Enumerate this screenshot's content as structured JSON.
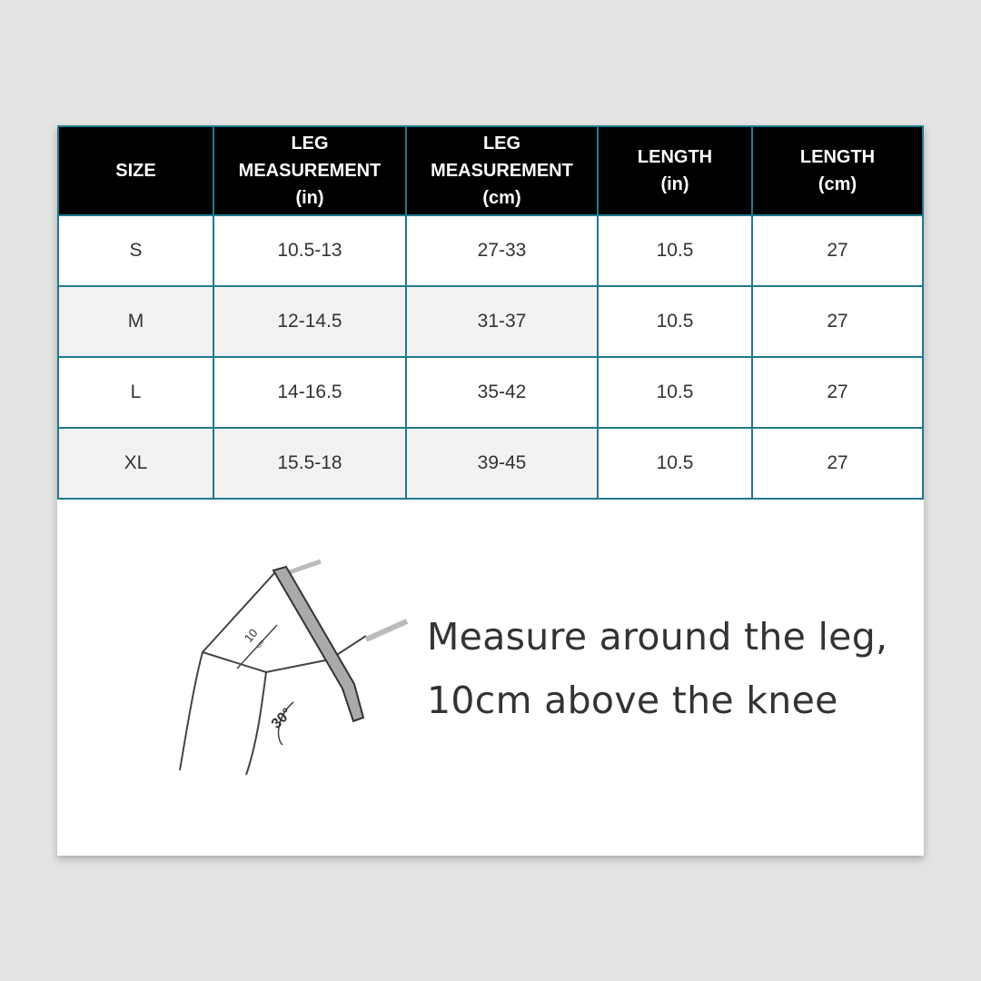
{
  "table": {
    "headers": [
      "SIZE",
      "LEG\nMEASUREMENT\n(in)",
      "LEG\nMEASUREMENT\n(cm)",
      "LENGTH\n(in)",
      "LENGTH\n(cm)"
    ],
    "header_lines": [
      [
        "SIZE"
      ],
      [
        "LEG",
        "MEASUREMENT",
        "(in)"
      ],
      [
        "LEG",
        "MEASUREMENT",
        "(cm)"
      ],
      [
        "LENGTH",
        "(in)"
      ],
      [
        "LENGTH",
        "(cm)"
      ]
    ],
    "rows": [
      [
        "S",
        "10.5-13",
        "27-33",
        "10.5",
        "27"
      ],
      [
        "M",
        "12-14.5",
        "31-37",
        "10.5",
        "27"
      ],
      [
        "L",
        "14-16.5",
        "35-42",
        "10.5",
        "27"
      ],
      [
        "XL",
        "15.5-18",
        "39-45",
        "10.5",
        "27"
      ]
    ]
  },
  "illustration": {
    "distance_label": "10",
    "distance_unit": "cm",
    "angle_label": "30°"
  },
  "caption": {
    "line1": "Measure around the leg,",
    "line2": "10cm above the knee"
  },
  "colors": {
    "border": "#1f7a8c",
    "header_bg": "#000000",
    "alt_row": "#f2f2f2"
  }
}
